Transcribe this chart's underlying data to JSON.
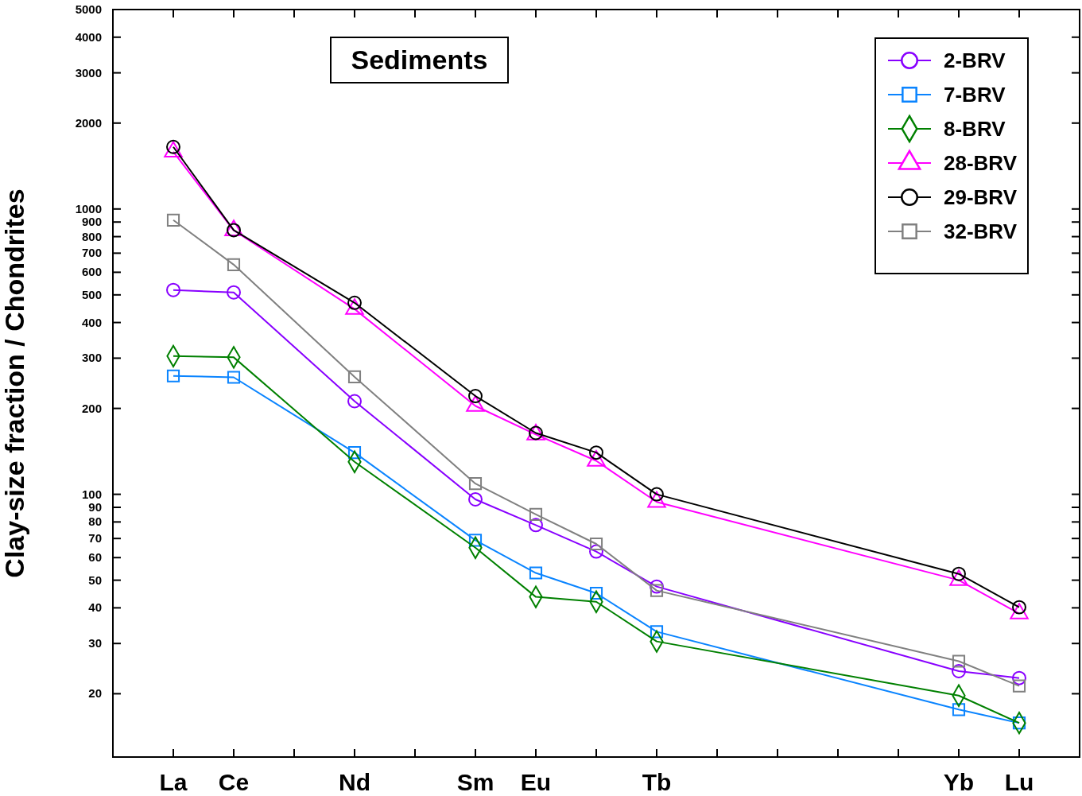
{
  "chart_data": {
    "type": "line",
    "title": "Sediments",
    "ylabel": "Clay-size fraction / Chondrites",
    "categories": [
      "La",
      "Ce",
      null,
      "Nd",
      null,
      "Sm",
      "Eu",
      null,
      "Tb",
      null,
      null,
      null,
      null,
      "Yb",
      "Lu"
    ],
    "log": true,
    "ylim": [
      12,
      5000
    ],
    "yticks": [
      20,
      30,
      40,
      50,
      60,
      70,
      80,
      90,
      100,
      200,
      300,
      400,
      500,
      600,
      700,
      800,
      900,
      1000,
      2000,
      3000,
      4000,
      5000
    ],
    "grid": false,
    "legend": "top right",
    "line_style": "solid",
    "series": [
      {
        "name": "2-BRV",
        "color": "#8800ff",
        "marker": "circle",
        "values": [
          520,
          510,
          null,
          212,
          null,
          96,
          78,
          63,
          47.5,
          null,
          null,
          null,
          null,
          24,
          22.7
        ]
      },
      {
        "name": "7-BRV",
        "color": "#0a84ff",
        "marker": "square",
        "values": [
          260,
          257,
          null,
          140,
          null,
          69,
          53,
          45,
          33,
          null,
          null,
          null,
          null,
          17.6,
          15.8
        ]
      },
      {
        "name": "8-BRV",
        "color": "#008000",
        "marker": "diamond",
        "values": [
          305,
          302,
          null,
          130,
          null,
          65,
          43.7,
          42,
          30.5,
          null,
          null,
          null,
          null,
          19.7,
          15.8
        ]
      },
      {
        "name": "28-BRV",
        "color": "#ff00ff",
        "marker": "triangle",
        "values": [
          1587,
          841,
          null,
          446,
          null,
          204,
          162,
          131,
          94,
          null,
          null,
          null,
          null,
          50,
          38.2
        ]
      },
      {
        "name": "29-BRV",
        "color": "#000000",
        "marker": "circle",
        "values": [
          1650,
          843,
          null,
          469,
          null,
          221,
          164,
          140,
          100,
          null,
          null,
          null,
          null,
          52.6,
          40.2
        ]
      },
      {
        "name": "32-BRV",
        "color": "#808080",
        "marker": "square",
        "values": [
          914,
          638,
          null,
          258,
          null,
          109,
          85,
          67,
          46,
          null,
          null,
          null,
          null,
          26,
          21.3
        ]
      }
    ]
  }
}
